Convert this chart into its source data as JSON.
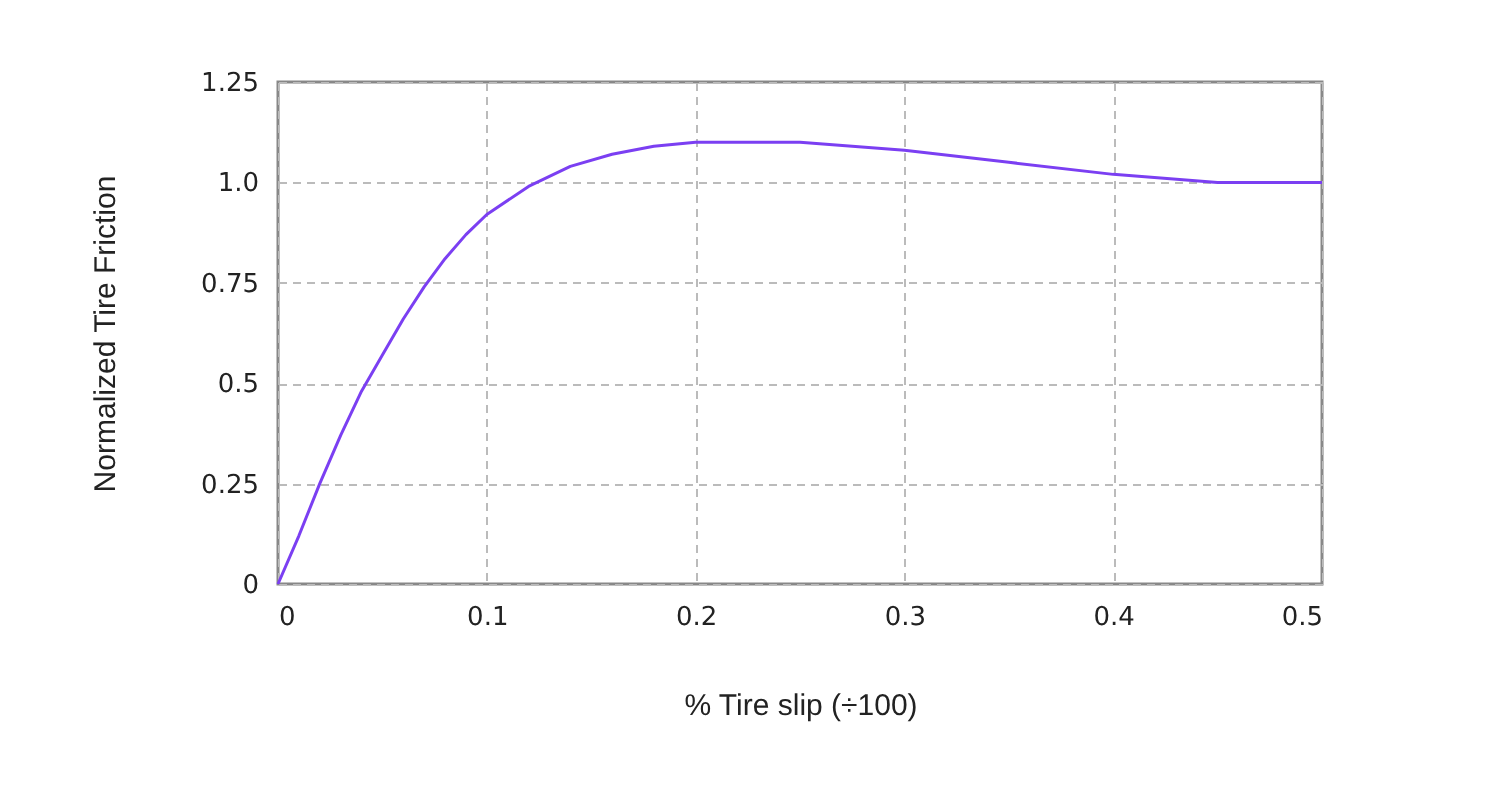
{
  "chart_data": {
    "type": "line",
    "xlabel": "% Tire slip (÷100)",
    "ylabel": "Normalized Tire Friction",
    "x": [
      0,
      0.01,
      0.02,
      0.03,
      0.04,
      0.05,
      0.06,
      0.07,
      0.08,
      0.09,
      0.1,
      0.12,
      0.14,
      0.16,
      0.18,
      0.2,
      0.25,
      0.3,
      0.35,
      0.4,
      0.45,
      0.5
    ],
    "series": [
      {
        "color": "#7b3ff2",
        "values": [
          0,
          0.12,
          0.25,
          0.37,
          0.48,
          0.57,
          0.66,
          0.74,
          0.81,
          0.87,
          0.92,
          0.99,
          1.04,
          1.07,
          1.09,
          1.1,
          1.1,
          1.08,
          1.05,
          1.02,
          1.0,
          1.0
        ]
      }
    ],
    "xlim": [
      0,
      0.5
    ],
    "xticks": [
      0,
      0.1,
      0.2,
      0.3,
      0.4,
      0.5
    ],
    "ylim": [
      0,
      1.25
    ],
    "yticks": [
      0,
      0.25,
      {
        "value": 0.5,
        "label": "0.5"
      },
      0.75,
      {
        "value": 1,
        "label": "1.0"
      },
      1.25
    ],
    "grid": true,
    "marker": "none",
    "line_style": "solid"
  }
}
